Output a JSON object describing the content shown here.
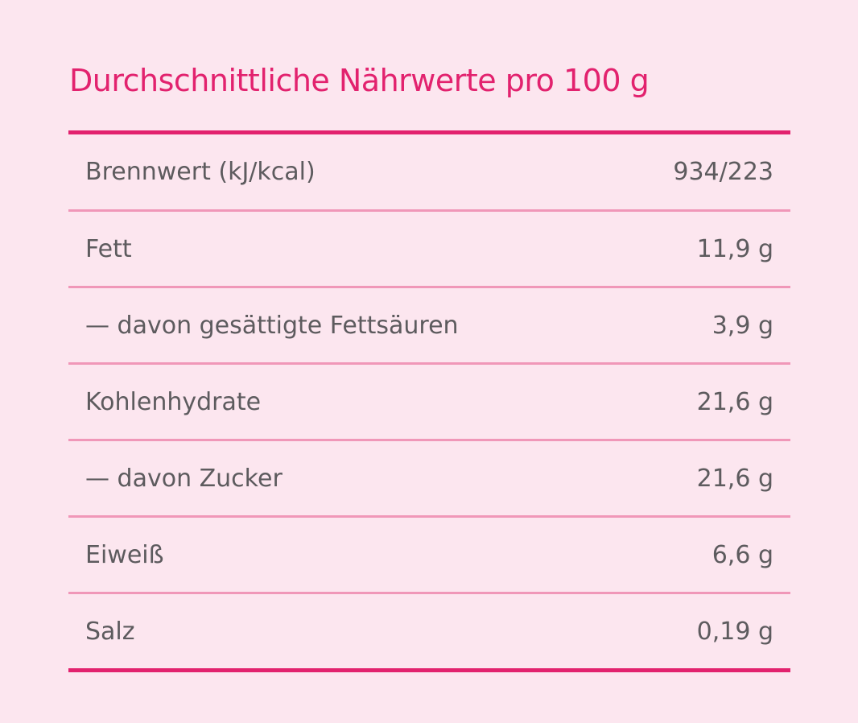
{
  "header": {
    "title": "Durchschnittliche Nährwerte pro 100 g"
  },
  "table": {
    "rows": [
      [
        "Brennwert (kJ/kcal)",
        "934/223"
      ],
      [
        "Fett",
        "11,9 g"
      ],
      [
        "— davon gesättigte Fettsäuren",
        "3,9 g"
      ],
      [
        "Kohlenhydrate",
        "21,6 g"
      ],
      [
        "— davon Zucker",
        "21,6 g"
      ],
      [
        "Eiweiß",
        "6,6 g"
      ],
      [
        "Salz",
        "0,19 g"
      ]
    ]
  }
}
